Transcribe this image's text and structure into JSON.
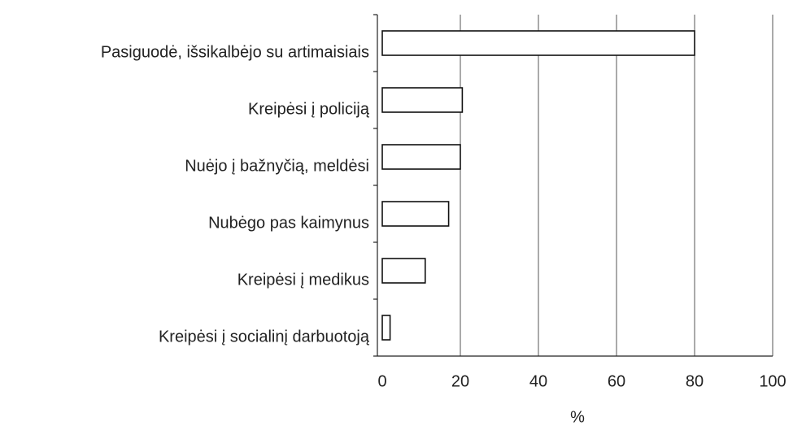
{
  "chart_data": {
    "type": "bar",
    "orientation": "horizontal",
    "categories": [
      "Pasiguodė, išsikalbėjo su artimaisiais",
      "Kreipėsi į policiją",
      "Nuėjo į bažnyčią, meldėsi",
      "Nubėgo pas kaimynus",
      "Kreipėsi į medikus",
      "Kreipėsi į socialinį darbuotoją"
    ],
    "values": [
      80,
      20.5,
      20,
      17,
      11,
      2
    ],
    "color": "#ffffff",
    "xlabel": "%",
    "xlim": [
      0,
      100
    ],
    "xticks": [
      0,
      20,
      40,
      60,
      80,
      100
    ],
    "grid": true
  }
}
